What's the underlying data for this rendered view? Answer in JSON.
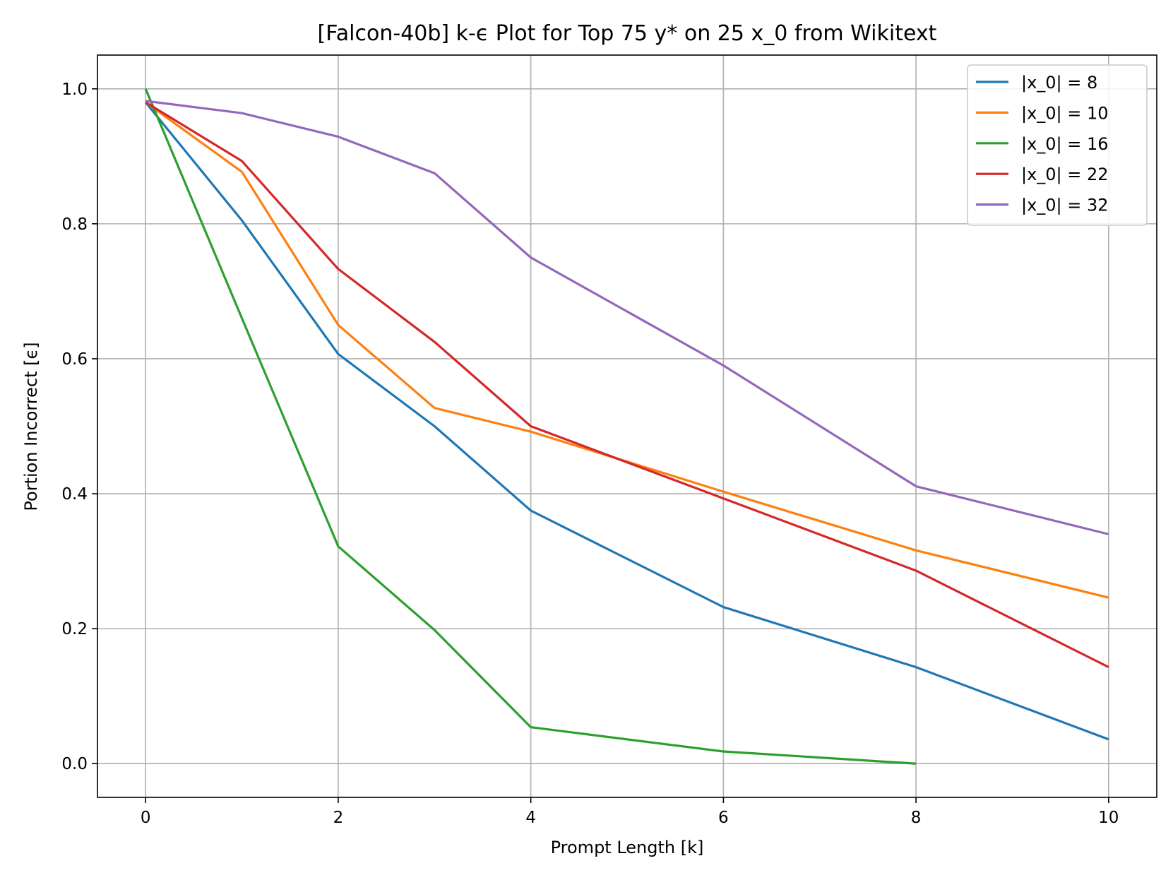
{
  "chart_data": {
    "type": "line",
    "title": "[Falcon-40b] k-ϵ Plot for Top 75 y* on 25 x_0 from Wikitext",
    "xlabel": "Prompt Length [k]",
    "ylabel": "Portion Incorrect [ϵ]",
    "xlim": [
      -0.5,
      10.5
    ],
    "ylim": [
      -0.05,
      1.05
    ],
    "xticks": [
      0,
      2,
      4,
      6,
      8,
      10
    ],
    "xtick_labels": [
      "0",
      "2",
      "4",
      "6",
      "8",
      "10"
    ],
    "yticks": [
      0.0,
      0.2,
      0.4,
      0.6,
      0.8,
      1.0
    ],
    "ytick_labels": [
      "0.0",
      "0.2",
      "0.4",
      "0.6",
      "0.8",
      "1.0"
    ],
    "grid": true,
    "legend_position": "top-right",
    "series": [
      {
        "name": "|x_0| = 8",
        "color": "#1f77b4",
        "x": [
          0,
          1,
          2,
          3,
          4,
          6,
          8,
          10
        ],
        "y": [
          0.98,
          0.805,
          0.607,
          0.5,
          0.375,
          0.232,
          0.143,
          0.036
        ]
      },
      {
        "name": "|x_0| = 10",
        "color": "#ff7f0e",
        "x": [
          0,
          1,
          2,
          3,
          4,
          6,
          8,
          10
        ],
        "y": [
          0.98,
          0.877,
          0.65,
          0.527,
          0.492,
          0.403,
          0.316,
          0.246
        ]
      },
      {
        "name": "|x_0| = 16",
        "color": "#2ca02c",
        "x": [
          0,
          1,
          2,
          3,
          4,
          6,
          8
        ],
        "y": [
          1.0,
          0.66,
          0.322,
          0.198,
          0.054,
          0.018,
          0.0
        ]
      },
      {
        "name": "|x_0| = 22",
        "color": "#d62728",
        "x": [
          0,
          1,
          2,
          3,
          4,
          6,
          8,
          10
        ],
        "y": [
          0.98,
          0.893,
          0.733,
          0.625,
          0.5,
          0.393,
          0.286,
          0.143
        ]
      },
      {
        "name": "|x_0| = 32",
        "color": "#9467bd",
        "x": [
          0,
          1,
          2,
          3,
          4,
          6,
          8,
          10
        ],
        "y": [
          0.982,
          0.964,
          0.929,
          0.875,
          0.75,
          0.59,
          0.411,
          0.34
        ]
      }
    ]
  }
}
